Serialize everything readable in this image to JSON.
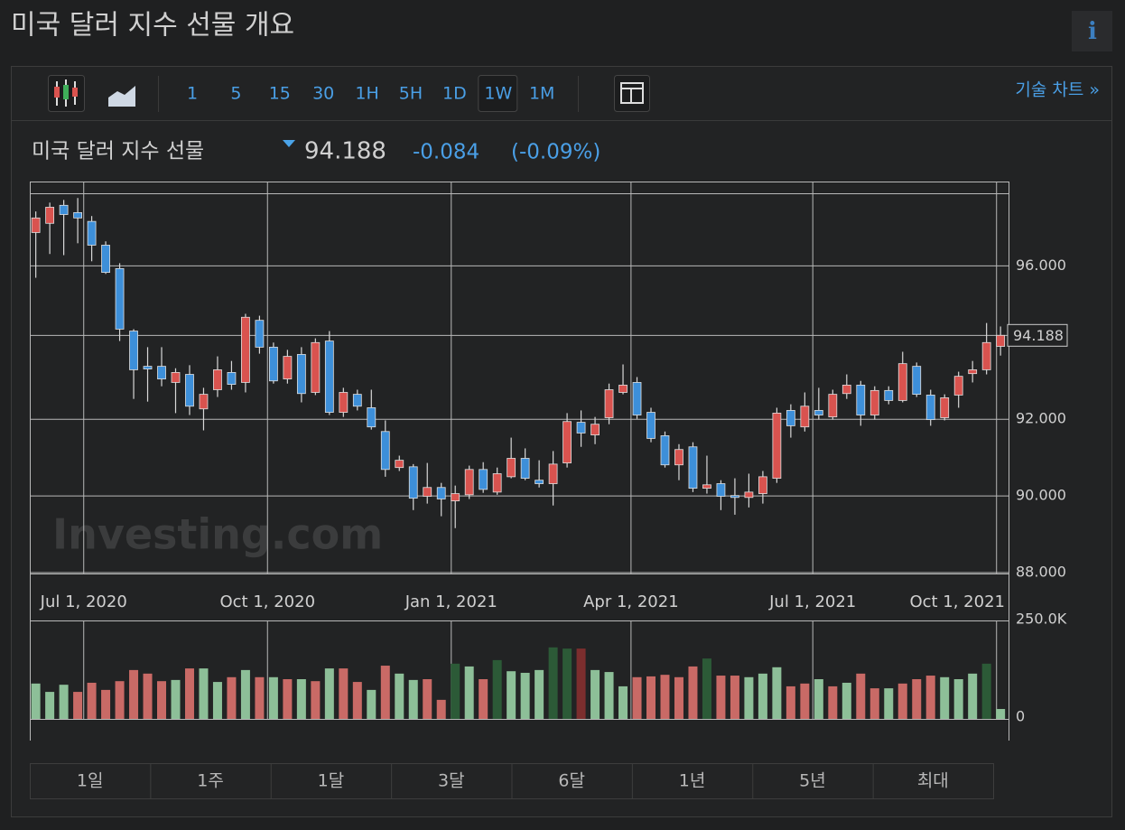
{
  "header": {
    "title": "미국 달러 지수 선물 개요",
    "info": "i"
  },
  "toolbar": {
    "intervals": [
      "1",
      "5",
      "15",
      "30",
      "1H",
      "5H",
      "1D",
      "1W",
      "1M"
    ],
    "active_index": 7,
    "tech_chart": "기술 차트 »"
  },
  "quote": {
    "name": "미국 달러 지수 선물",
    "change": "-0.084",
    "change_pct": "(-0.09%)"
  },
  "chart_data": {
    "type": "candlestick",
    "watermark": "Investing.com",
    "x": [
      "2020-06-07",
      "2020-06-14",
      "2020-06-21",
      "2020-06-28",
      "2020-07-05",
      "2020-07-12",
      "2020-07-19",
      "2020-07-26",
      "2020-08-02",
      "2020-08-09",
      "2020-08-16",
      "2020-08-23",
      "2020-08-30",
      "2020-09-06",
      "2020-09-13",
      "2020-09-20",
      "2020-09-27",
      "2020-10-04",
      "2020-10-11",
      "2020-10-18",
      "2020-10-25",
      "2020-11-01",
      "2020-11-08",
      "2020-11-15",
      "2020-11-22",
      "2020-11-29",
      "2020-12-06",
      "2020-12-13",
      "2020-12-20",
      "2020-12-27",
      "2021-01-03",
      "2021-01-10",
      "2021-01-17",
      "2021-01-24",
      "2021-01-31",
      "2021-02-07",
      "2021-02-14",
      "2021-02-21",
      "2021-02-28",
      "2021-03-07",
      "2021-03-14",
      "2021-03-21",
      "2021-03-28",
      "2021-04-04",
      "2021-04-11",
      "2021-04-18",
      "2021-04-25",
      "2021-05-02",
      "2021-05-09",
      "2021-05-16",
      "2021-05-23",
      "2021-05-30",
      "2021-06-06",
      "2021-06-13",
      "2021-06-20",
      "2021-06-27",
      "2021-07-04",
      "2021-07-11",
      "2021-07-18",
      "2021-07-25",
      "2021-08-01",
      "2021-08-08",
      "2021-08-15",
      "2021-08-22",
      "2021-08-29",
      "2021-09-05",
      "2021-09-12",
      "2021-09-19",
      "2021-09-26",
      "2021-10-03"
    ],
    "open": [
      96.87,
      97.11,
      97.58,
      97.39,
      97.16,
      96.54,
      95.93,
      94.3,
      93.38,
      93.38,
      92.96,
      93.17,
      92.27,
      92.77,
      93.22,
      92.96,
      94.58,
      93.88,
      93.05,
      93.69,
      92.7,
      94.04,
      92.18,
      92.65,
      92.3,
      91.68,
      90.74,
      90.76,
      89.99,
      90.22,
      89.87,
      90.03,
      90.69,
      90.1,
      90.5,
      90.98,
      90.41,
      90.32,
      90.86,
      91.92,
      91.59,
      92.04,
      92.7,
      92.96,
      92.18,
      91.57,
      90.81,
      91.28,
      90.2,
      90.32,
      90.01,
      89.96,
      90.06,
      90.46,
      92.23,
      91.8,
      92.23,
      92.06,
      92.67,
      92.89,
      92.11,
      92.75,
      92.49,
      93.38,
      92.63,
      92.04,
      92.63,
      93.19,
      93.29,
      93.9
    ],
    "high": [
      97.42,
      97.65,
      97.72,
      97.77,
      97.3,
      96.64,
      96.07,
      94.35,
      93.88,
      93.88,
      93.33,
      93.41,
      92.82,
      93.64,
      93.52,
      94.75,
      94.7,
      94.0,
      93.81,
      93.88,
      94.11,
      94.3,
      92.82,
      92.77,
      92.77,
      91.97,
      91.05,
      90.83,
      90.86,
      90.34,
      90.27,
      90.79,
      90.88,
      90.74,
      91.52,
      91.24,
      90.93,
      91.17,
      92.16,
      92.23,
      92.06,
      92.93,
      93.43,
      93.1,
      92.3,
      91.68,
      91.35,
      91.4,
      91.05,
      90.41,
      90.46,
      90.58,
      90.65,
      92.3,
      92.39,
      92.7,
      92.82,
      92.77,
      93.17,
      93.0,
      92.86,
      92.86,
      93.76,
      93.48,
      92.77,
      92.65,
      93.24,
      93.52,
      94.51,
      94.42
    ],
    "low": [
      95.69,
      96.31,
      96.28,
      96.59,
      96.12,
      95.79,
      94.04,
      92.53,
      92.46,
      92.86,
      92.16,
      92.11,
      91.71,
      92.58,
      92.77,
      92.7,
      93.71,
      92.93,
      92.93,
      92.44,
      92.63,
      92.11,
      92.06,
      92.23,
      91.73,
      90.5,
      90.65,
      89.63,
      89.8,
      89.47,
      89.16,
      89.92,
      90.08,
      90.03,
      90.46,
      90.41,
      90.22,
      89.75,
      90.74,
      91.28,
      91.35,
      91.87,
      92.65,
      92.01,
      91.4,
      90.74,
      90.41,
      90.1,
      90.06,
      89.63,
      89.51,
      89.7,
      89.8,
      90.34,
      91.52,
      91.68,
      91.99,
      91.99,
      92.53,
      91.83,
      91.99,
      92.39,
      92.44,
      92.58,
      91.83,
      91.97,
      92.3,
      92.96,
      93.17,
      93.66
    ],
    "close": [
      97.25,
      97.53,
      97.34,
      97.25,
      96.54,
      95.83,
      94.35,
      93.29,
      93.31,
      93.05,
      93.22,
      92.34,
      92.65,
      93.29,
      92.91,
      94.66,
      93.88,
      93.0,
      93.64,
      92.67,
      94.0,
      92.18,
      92.7,
      92.34,
      91.8,
      90.69,
      90.93,
      89.94,
      90.22,
      89.92,
      90.06,
      90.69,
      90.17,
      90.58,
      90.98,
      90.46,
      90.32,
      90.83,
      91.94,
      91.64,
      91.87,
      92.77,
      92.89,
      92.11,
      91.5,
      90.81,
      91.21,
      90.2,
      90.29,
      89.99,
      89.96,
      90.1,
      90.5,
      92.16,
      91.83,
      92.34,
      92.11,
      92.65,
      92.89,
      92.11,
      92.75,
      92.49,
      93.45,
      92.65,
      91.99,
      92.56,
      93.12,
      93.29,
      94.0,
      94.188
    ],
    "up_color": "#d9534f",
    "down_color": "#3d8fd9",
    "xlim": [
      "2020-06-04",
      "2021-10-07"
    ],
    "xticks": [
      {
        "value": "2020-07-01",
        "label": "Jul 1, 2020"
      },
      {
        "value": "2020-10-01",
        "label": "Oct 1, 2020"
      },
      {
        "value": "2021-01-01",
        "label": "Jan 1, 2021"
      },
      {
        "value": "2021-04-01",
        "label": "Apr 1, 2021"
      },
      {
        "value": "2021-07-01",
        "label": "Jul 1, 2021"
      },
      {
        "value": "2021-10-01",
        "label": "Oct 1, 2021"
      }
    ],
    "ylim": [
      88,
      98.2
    ],
    "yticks": [
      {
        "value": 88,
        "label": "88.000"
      },
      {
        "value": 90,
        "label": "90.000"
      },
      {
        "value": 92,
        "label": "92.000"
      },
      {
        "value": 96,
        "label": "96.000"
      }
    ],
    "last_price": 94.188,
    "grid": true,
    "volume": {
      "axis": "y2",
      "values": [
        89000,
        68000,
        86000,
        68000,
        91000,
        73000,
        95000,
        123000,
        114000,
        95000,
        98000,
        127000,
        127000,
        93000,
        105000,
        123000,
        105000,
        105000,
        100000,
        100000,
        95000,
        127000,
        127000,
        93000,
        73000,
        134000,
        114000,
        98000,
        100000,
        48000,
        139000,
        132000,
        100000,
        148000,
        120000,
        116000,
        123000,
        180000,
        177000,
        177000,
        123000,
        118000,
        82000,
        105000,
        107000,
        111000,
        105000,
        132000,
        152000,
        109000,
        109000,
        105000,
        114000,
        130000,
        82000,
        89000,
        100000,
        82000,
        91000,
        114000,
        77000,
        77000,
        89000,
        100000,
        109000,
        105000,
        100000,
        114000,
        139000,
        25000
      ],
      "colors": [
        "#8dbf98",
        "#8dbf98",
        "#8dbf98",
        "#c96a66",
        "#c96a66",
        "#c96a66",
        "#c96a66",
        "#c96a66",
        "#c96a66",
        "#c96a66",
        "#8dbf98",
        "#c96a66",
        "#8dbf98",
        "#8dbf98",
        "#c96a66",
        "#8dbf98",
        "#c96a66",
        "#8dbf98",
        "#c96a66",
        "#8dbf98",
        "#c96a66",
        "#8dbf98",
        "#c96a66",
        "#c96a66",
        "#8dbf98",
        "#c96a66",
        "#8dbf98",
        "#8dbf98",
        "#c96a66",
        "#c96a66",
        "#2c5a37",
        "#8dbf98",
        "#c96a66",
        "#2c5a37",
        "#8dbf98",
        "#8dbf98",
        "#8dbf98",
        "#2c5a37",
        "#2c5a37",
        "#7c2e2e",
        "#8dbf98",
        "#8dbf98",
        "#8dbf98",
        "#c96a66",
        "#c96a66",
        "#c96a66",
        "#c96a66",
        "#c96a66",
        "#2c5a37",
        "#c96a66",
        "#c96a66",
        "#8dbf98",
        "#8dbf98",
        "#8dbf98",
        "#c96a66",
        "#c96a66",
        "#8dbf98",
        "#c96a66",
        "#8dbf98",
        "#c96a66",
        "#c96a66",
        "#8dbf98",
        "#c96a66",
        "#c96a66",
        "#c96a66",
        "#8dbf98",
        "#8dbf98",
        "#8dbf98",
        "#2c5a37",
        "#8dbf98"
      ]
    },
    "y2lim": [
      0,
      250000
    ],
    "y2ticks": [
      {
        "value": 250000,
        "label": "250.0K"
      },
      0
    ]
  },
  "ranges": [
    "1일",
    "1주",
    "1달",
    "3달",
    "6달",
    "1년",
    "5년",
    "최대"
  ]
}
